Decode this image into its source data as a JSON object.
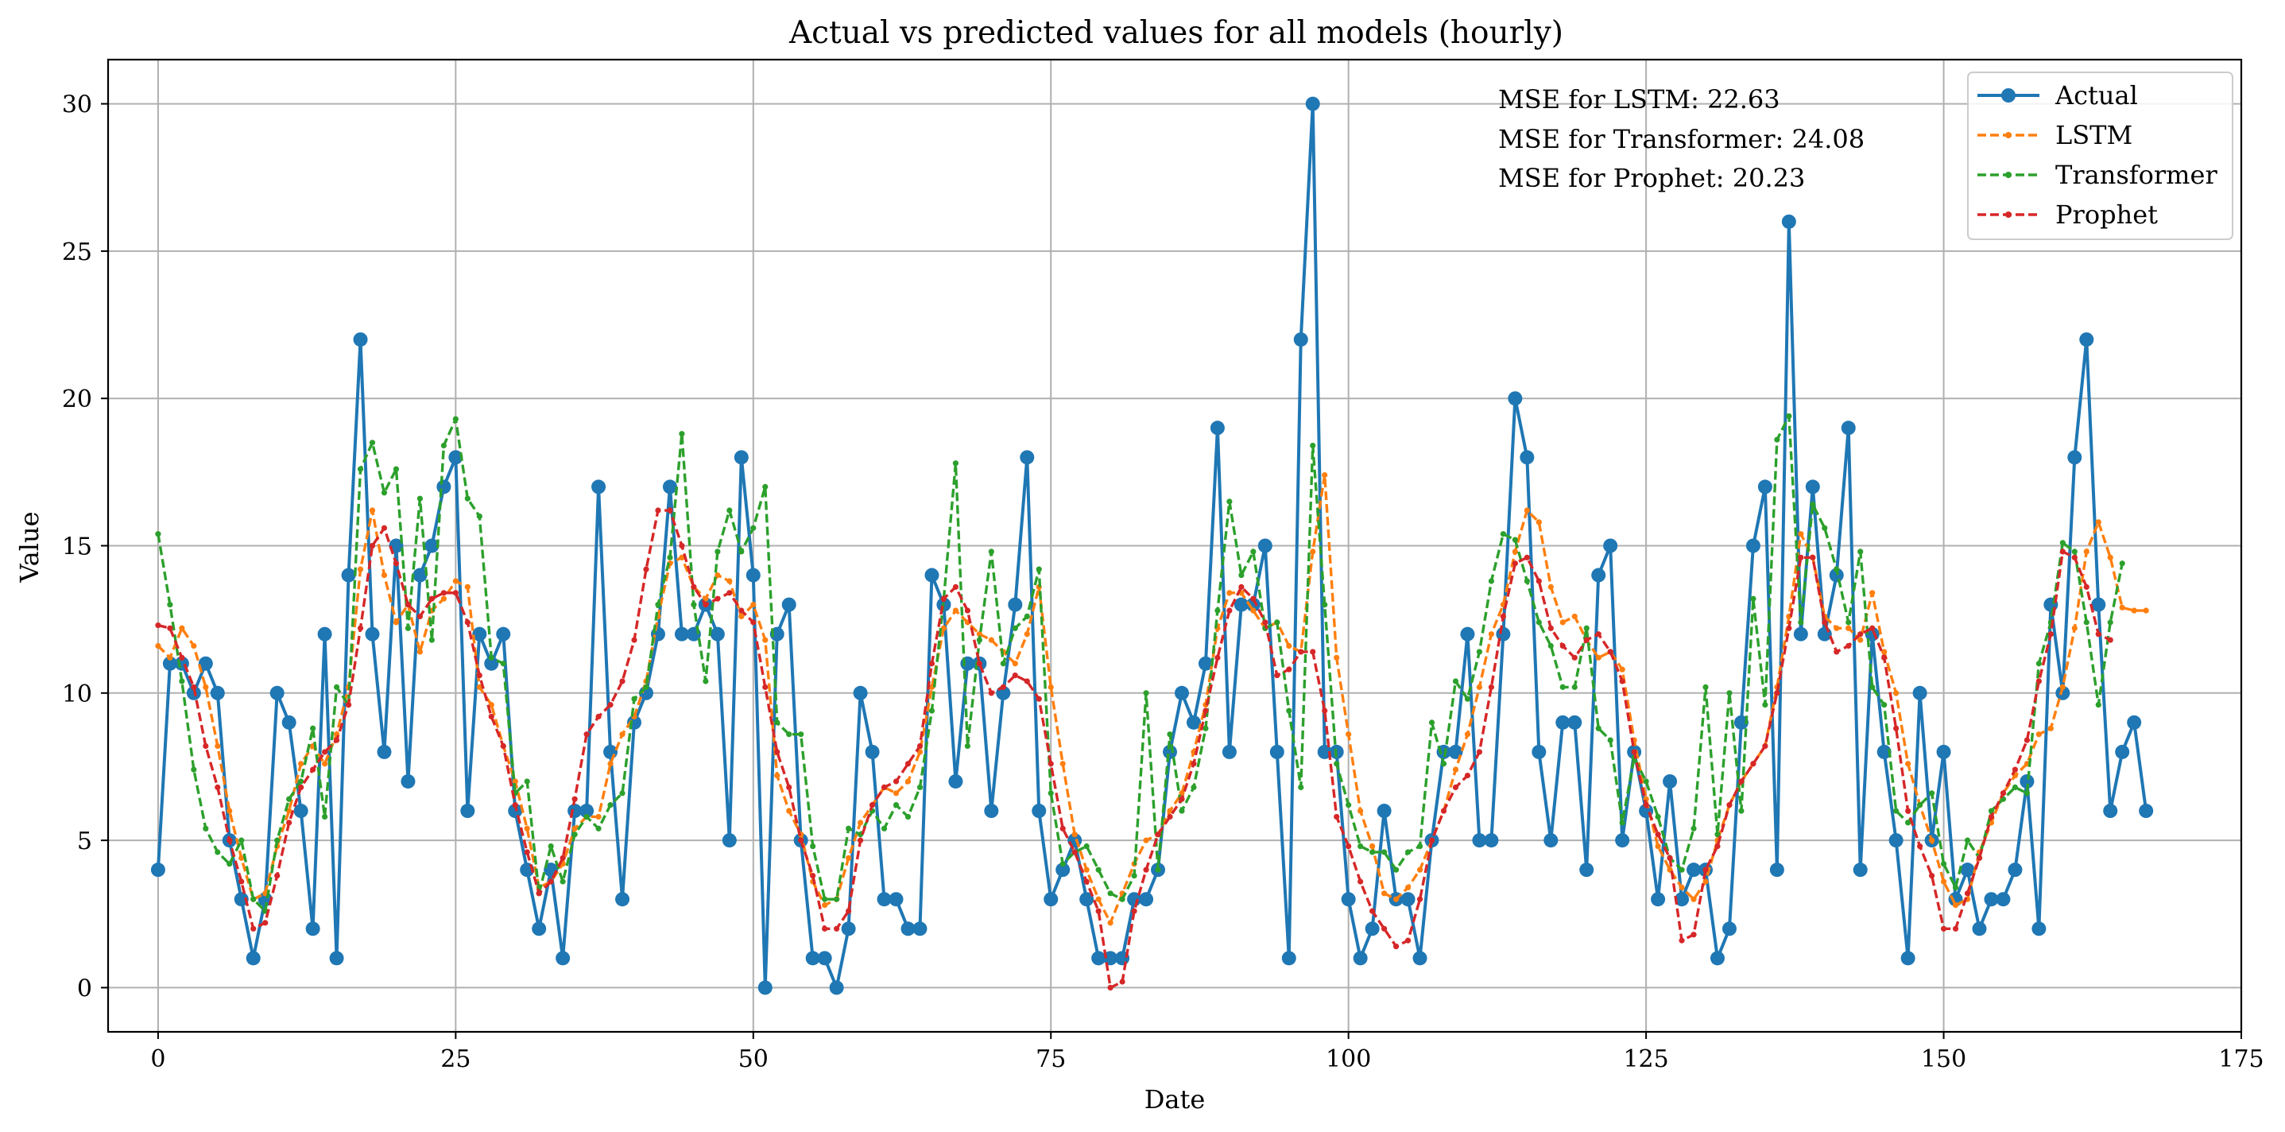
{
  "chart_data": {
    "type": "line",
    "title": "Actual vs predicted values for all models (hourly)",
    "xlabel": "Date",
    "ylabel": "Value",
    "xlim": [
      -4.2,
      175
    ],
    "ylim": [
      -1.5,
      31.5
    ],
    "xticks": [
      0,
      25,
      50,
      75,
      100,
      125,
      150,
      175
    ],
    "yticks": [
      0,
      5,
      10,
      15,
      20,
      25,
      30
    ],
    "grid": true,
    "legend_position": "top-right",
    "annotations": [
      "MSE for LSTM: 22.63",
      "MSE for Transformer: 24.08",
      "MSE for Prophet: 20.23"
    ],
    "series": [
      {
        "name": "Actual",
        "color": "#1f77b4",
        "style": "solid-marker",
        "values": [
          4,
          11,
          11,
          10,
          11,
          10,
          5,
          3,
          1,
          3,
          10,
          9,
          6,
          2,
          12,
          1,
          14,
          22,
          12,
          8,
          15,
          7,
          14,
          15,
          17,
          18,
          6,
          12,
          11,
          12,
          6,
          4,
          2,
          4,
          1,
          6,
          6,
          17,
          8,
          3,
          9,
          10,
          12,
          17,
          12,
          12,
          13,
          12,
          5,
          18,
          14,
          0,
          12,
          13,
          5,
          1,
          1,
          0,
          2,
          10,
          8,
          3,
          3,
          2,
          2,
          14,
          13,
          7,
          11,
          11,
          6,
          10,
          13,
          18,
          6,
          3,
          4,
          5,
          3,
          1,
          1,
          1,
          3,
          3,
          4,
          8,
          10,
          9,
          11,
          19,
          8,
          13,
          13,
          15,
          8,
          1,
          22,
          30,
          8,
          8,
          3,
          1,
          2,
          6,
          3,
          3,
          1,
          5,
          8,
          8,
          12,
          5,
          5,
          12,
          20,
          18,
          8,
          5,
          9,
          9,
          4,
          14,
          15,
          5,
          8,
          6,
          3,
          7,
          3,
          4,
          4,
          1,
          2,
          9,
          15,
          17,
          4,
          26,
          12,
          17,
          12,
          14,
          19,
          4,
          12,
          8,
          5,
          1,
          10,
          5,
          8,
          3,
          4,
          2,
          3,
          3,
          4,
          7,
          2,
          13,
          10,
          18,
          22,
          13,
          6,
          8,
          9,
          6
        ]
      },
      {
        "name": "LSTM",
        "color": "#ff7f0e",
        "style": "dashed",
        "values": [
          11.6,
          11.2,
          12.2,
          11.6,
          10.2,
          8.2,
          6,
          4.4,
          3,
          3.2,
          4.8,
          6,
          7.6,
          8.2,
          7.6,
          8.6,
          10.2,
          14.2,
          16.2,
          14,
          12.4,
          13,
          11.4,
          12.8,
          13.2,
          13.8,
          13.6,
          10.2,
          9.6,
          8.2,
          7,
          5.4,
          3.4,
          3.6,
          4.2,
          5.4,
          5.8,
          5.8,
          7.6,
          8.6,
          9.2,
          10.4,
          12.6,
          14.4,
          14.6,
          13.6,
          13.2,
          14,
          13.8,
          12.6,
          13,
          11.8,
          7.2,
          6,
          5.2,
          3.6,
          2.8,
          3,
          4.4,
          5.6,
          6.2,
          6.8,
          6.6,
          7,
          8,
          10.2,
          12.2,
          12.8,
          12.4,
          12,
          11.8,
          11.4,
          11,
          12,
          13.6,
          10.2,
          7.6,
          5.2,
          4,
          3,
          2.2,
          3.2,
          4.2,
          5,
          5.2,
          6,
          6.6,
          8,
          9.6,
          12.2,
          13.4,
          13.4,
          12.8,
          12.2,
          12.4,
          11.6,
          11.4,
          14.8,
          17.4,
          11.2,
          8.6,
          6,
          4.8,
          3.2,
          3,
          3.4,
          4,
          5,
          6,
          7.4,
          8.6,
          10.2,
          12,
          13,
          14.8,
          16.2,
          15.8,
          13.6,
          12.4,
          12.6,
          11.8,
          11.2,
          11.4,
          10.8,
          8.4,
          6.4,
          4.8,
          4,
          3.4,
          3,
          3.6,
          5,
          6.2,
          7,
          7.6,
          8.2,
          10.2,
          12.6,
          15.4,
          14.6,
          12.6,
          12.2,
          12.2,
          11.8,
          13.4,
          11.4,
          10,
          7.6,
          6.2,
          5,
          3.6,
          2.8,
          3,
          4.6,
          5.6,
          6.6,
          7.2,
          7.6,
          8.6,
          8.8,
          10.2,
          12.2,
          14.8,
          15.8,
          14.6,
          12.9,
          12.8,
          12.8
        ]
      },
      {
        "name": "Transformer",
        "color": "#2ca02c",
        "style": "dashed",
        "values": [
          15.4,
          13,
          10.4,
          7.4,
          5.4,
          4.6,
          4.2,
          5,
          3,
          2.6,
          5,
          6.4,
          7,
          8.8,
          5.8,
          10.2,
          9.6,
          17.6,
          18.5,
          16.8,
          17.6,
          12.2,
          16.6,
          11.8,
          18.4,
          19.3,
          16.6,
          16,
          11.2,
          11,
          6.6,
          7,
          3.2,
          4.8,
          3.6,
          5.2,
          5.8,
          5.4,
          6.2,
          6.6,
          9.8,
          10.2,
          13,
          14.6,
          18.8,
          13,
          10.4,
          14.8,
          16.2,
          14.8,
          15.6,
          17,
          9,
          8.6,
          8.6,
          4.8,
          3,
          3,
          5.4,
          5.2,
          6,
          5.4,
          6.2,
          5.8,
          6.8,
          9.4,
          13.2,
          17.8,
          8.2,
          11.8,
          14.8,
          11,
          12.2,
          12.6,
          14.2,
          6.6,
          4.2,
          4.6,
          4.8,
          4,
          3.2,
          3,
          3.8,
          10,
          4,
          8.6,
          6,
          6.8,
          8.8,
          12.8,
          16.5,
          14,
          14.8,
          12.2,
          12.4,
          9.4,
          6.8,
          18.4,
          13,
          7.6,
          6.2,
          4.8,
          4.6,
          4.6,
          4,
          4.6,
          4.8,
          9,
          7.6,
          10.4,
          9.8,
          11.4,
          13.8,
          15.4,
          15.2,
          13.8,
          12.4,
          11.6,
          10.2,
          10.2,
          12.2,
          8.8,
          8.4,
          5.6,
          7.8,
          7,
          5.8,
          4.4,
          4,
          5.4,
          10.2,
          5.2,
          10,
          6,
          13.2,
          9.6,
          18.6,
          19.4,
          12.4,
          16.4,
          15.6,
          14.2,
          12.4,
          14.8,
          10.2,
          9.6,
          6,
          5.6,
          6.2,
          6.6,
          4.2,
          3.4,
          5,
          4.4,
          6,
          6.4,
          6.8,
          6.6,
          11,
          12.4,
          15.1,
          14.8,
          12.4,
          9.6,
          12.4,
          14.4
        ]
      },
      {
        "name": "Prophet",
        "color": "#d62728",
        "style": "dashed",
        "values": [
          12.3,
          12.2,
          11.2,
          10.2,
          8.2,
          6.8,
          5,
          3.6,
          2,
          2.2,
          3.8,
          5.6,
          6.8,
          7.4,
          8,
          8.4,
          9.6,
          12.2,
          15,
          15.6,
          14.4,
          13,
          12.6,
          13.2,
          13.4,
          13.4,
          12.4,
          10.6,
          9.2,
          8.2,
          6.2,
          4.6,
          3.2,
          3.6,
          4.4,
          6.4,
          8.6,
          9.2,
          9.6,
          10.4,
          11.8,
          14.2,
          16.2,
          16.2,
          15,
          13.6,
          13,
          13.2,
          13.4,
          12.8,
          12.4,
          10.2,
          8,
          6.8,
          5,
          3.8,
          2,
          2,
          2.6,
          5,
          6.2,
          6.8,
          7,
          7.6,
          8.2,
          11,
          13.2,
          13.6,
          12.8,
          11,
          10,
          10.2,
          10.6,
          10.4,
          9.8,
          7.6,
          5.4,
          4.6,
          3.6,
          2.6,
          0,
          0.2,
          2.6,
          4,
          5.2,
          5.8,
          6.4,
          7.6,
          9.4,
          11.2,
          12.8,
          13.6,
          13.2,
          12.4,
          10.6,
          10.8,
          11.4,
          11.4,
          9.4,
          5.8,
          4.8,
          3.6,
          2.6,
          2,
          1.4,
          1.6,
          3,
          5,
          6,
          6.8,
          7.2,
          8,
          10.2,
          12.6,
          14.4,
          14.6,
          13.8,
          12.2,
          11.6,
          11.2,
          11.8,
          12,
          11.4,
          10.4,
          8,
          6.2,
          5.2,
          4.4,
          1.6,
          1.8,
          4,
          4.8,
          6.2,
          7,
          7.6,
          8.2,
          10,
          12.2,
          14.6,
          14.6,
          12.4,
          11.4,
          11.6,
          12,
          12.2,
          11.2,
          8.8,
          6,
          4.8,
          3.8,
          2,
          2,
          3.2,
          4.4,
          5.8,
          6.6,
          7.4,
          8.4,
          10.4,
          12,
          14.8,
          14.6,
          13.6,
          12,
          11.8
        ]
      }
    ]
  }
}
